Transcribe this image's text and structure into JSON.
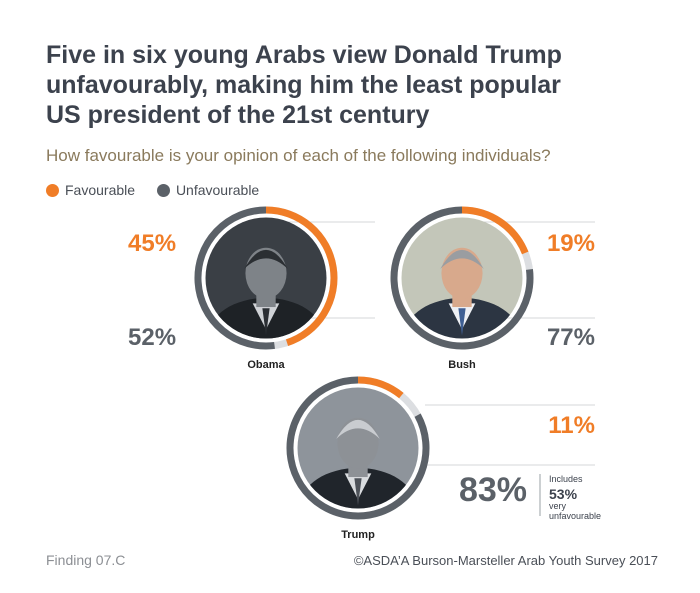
{
  "title_line1": "Five in six young Arabs view Donald Trump",
  "title_line2": "unfavourably, making him the least popular",
  "title_line3": "US president of the 21st century",
  "subtitle": "How favourable is your opinion of each of the following individuals?",
  "legend": {
    "favourable": "Favourable",
    "unfavourable": "Unfavourable"
  },
  "colors": {
    "favourable": "#f07d27",
    "unfavourable": "#5b6168",
    "title": "#3c424d",
    "subtitle": "#8a7a5c"
  },
  "chart_data": {
    "type": "pie",
    "title": "",
    "series": [
      {
        "name": "Favourable"
      },
      {
        "name": "Unfavourable"
      }
    ],
    "people": [
      {
        "name": "Obama",
        "favourable": 45,
        "unfavourable": 52,
        "favourable_label": "45%",
        "unfavourable_label": "52%"
      },
      {
        "name": "Bush",
        "favourable": 19,
        "unfavourable": 77,
        "favourable_label": "19%",
        "unfavourable_label": "77%"
      },
      {
        "name": "Trump",
        "favourable": 11,
        "unfavourable": 83,
        "favourable_label": "11%",
        "unfavourable_label": "83%"
      }
    ],
    "trump_note": {
      "line1": "Includes",
      "value": "53%",
      "line2": "very",
      "line3": "unfavourable"
    }
  },
  "footer": {
    "finding": "Finding 07.C",
    "source": "©ASDA’A Burson-Marsteller Arab Youth Survey 2017"
  }
}
